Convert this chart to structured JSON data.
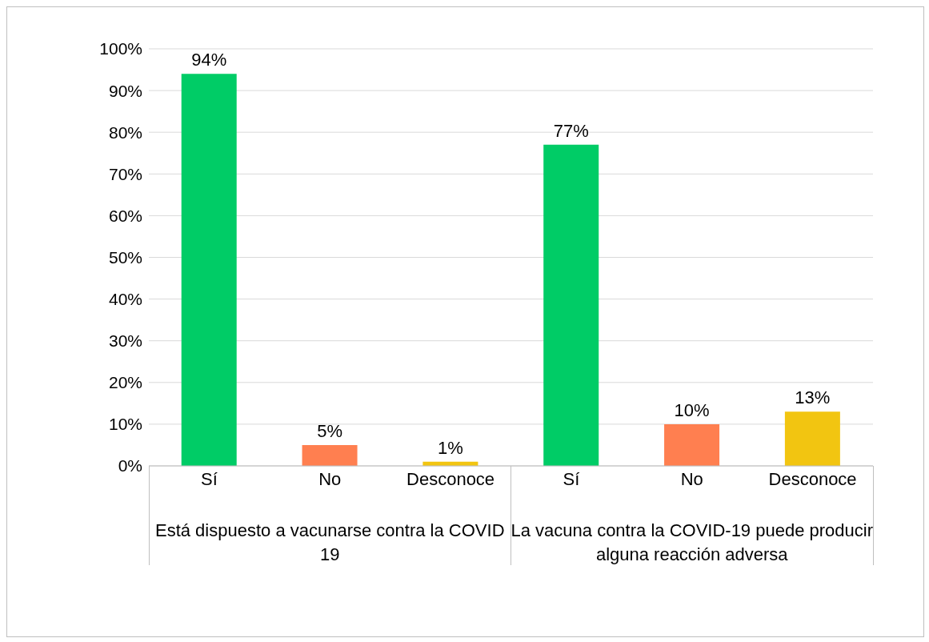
{
  "chart_data": {
    "type": "bar",
    "categories": [
      "Sí",
      "No",
      "Desconoce",
      "Sí",
      "No",
      "Desconoce"
    ],
    "values": [
      94,
      5,
      1,
      77,
      10,
      13
    ],
    "colors": [
      "#00cc66",
      "#ff7f50",
      "#f2c511",
      "#00cc66",
      "#ff7f50",
      "#f2c511"
    ],
    "value_labels": [
      "94%",
      "5%",
      "1%",
      "77%",
      "10%",
      "13%"
    ],
    "annotations": [
      "Está dispuesto a vacunarse contra la COVID 19",
      "La vacuna contra la COVID-19 puede producir alguna reacción adversa"
    ],
    "ylim": [
      0,
      100
    ],
    "yticks": [
      {
        "value": 0,
        "label": "0%"
      },
      {
        "value": 10,
        "label": "10%"
      },
      {
        "value": 20,
        "label": "20%"
      },
      {
        "value": 30,
        "label": "30%"
      },
      {
        "value": 40,
        "label": "40%"
      },
      {
        "value": 50,
        "label": "50%"
      },
      {
        "value": 60,
        "label": "60%"
      },
      {
        "value": 70,
        "label": "70%"
      },
      {
        "value": 80,
        "label": "80%"
      },
      {
        "value": 90,
        "label": "90%"
      },
      {
        "value": 100,
        "label": "100%"
      }
    ],
    "grid": "y",
    "legend": false
  }
}
